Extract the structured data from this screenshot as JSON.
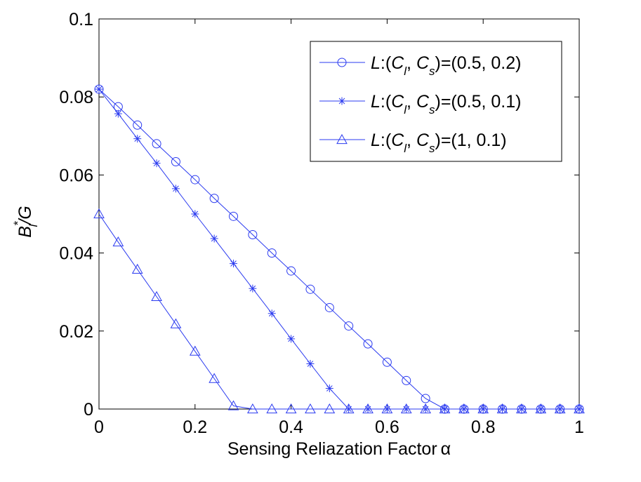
{
  "chart_data": {
    "type": "line",
    "title": "",
    "xlabel": "Sensing Reliazation Factor",
    "xlabel_symbol": "α",
    "ylabel": {
      "base": "B",
      "sup": "*",
      "sub": "l",
      "rest": "/G"
    },
    "xlim": [
      0,
      1
    ],
    "ylim": [
      0,
      0.1
    ],
    "xticks": [
      0,
      0.2,
      0.4,
      0.6,
      0.8,
      1
    ],
    "xtick_labels": [
      "0",
      "0.2",
      "0.4",
      "0.6",
      "0.8",
      "1"
    ],
    "yticks": [
      0,
      0.02,
      0.04,
      0.06,
      0.08,
      0.1
    ],
    "ytick_labels": [
      "0",
      "0.02",
      "0.04",
      "0.06",
      "0.08",
      "0.1"
    ],
    "grid": false,
    "legend_position": "top-right",
    "color": "#2b3bf0",
    "x": [
      0,
      0.04,
      0.08,
      0.12,
      0.16,
      0.2,
      0.24,
      0.28,
      0.32,
      0.36,
      0.4,
      0.44,
      0.48,
      0.52,
      0.56,
      0.6,
      0.64,
      0.68,
      0.72,
      0.76,
      0.8,
      0.84,
      0.88,
      0.92,
      0.96,
      1
    ],
    "series": [
      {
        "name": "L:(C_l, C_s)=(0.5, 0.2)",
        "legend": {
          "L": "L",
          "colon": ":(",
          "C": "C",
          "sub1": "l",
          "sep": ", ",
          "sub2": "s",
          "tail": ")=(0.5, 0.2)"
        },
        "marker": "circle",
        "values": [
          0.082,
          0.0775,
          0.0728,
          0.068,
          0.0634,
          0.0588,
          0.054,
          0.0494,
          0.0447,
          0.04,
          0.0354,
          0.0307,
          0.026,
          0.0213,
          0.0167,
          0.012,
          0.0073,
          0.0027,
          0,
          0,
          0,
          0,
          0,
          0,
          0,
          0
        ]
      },
      {
        "name": "L:(C_l, C_s)=(0.5, 0.1)",
        "legend": {
          "L": "L",
          "colon": ":(",
          "C": "C",
          "sub1": "l",
          "sep": ", ",
          "sub2": "s",
          "tail": ")=(0.5, 0.1)"
        },
        "marker": "star",
        "values": [
          0.082,
          0.0757,
          0.0693,
          0.063,
          0.0565,
          0.05,
          0.0437,
          0.0373,
          0.0309,
          0.0245,
          0.018,
          0.0116,
          0.0053,
          0,
          0,
          0,
          0,
          0,
          0,
          0,
          0,
          0,
          0,
          0,
          0,
          0
        ]
      },
      {
        "name": "L:(C_l, C_s)=(1, 0.1)",
        "legend": {
          "L": "L",
          "colon": ":(",
          "C": "C",
          "sub1": "l",
          "sep": ", ",
          "sub2": "s",
          "tail": ")=(1, 0.1)"
        },
        "marker": "triangle",
        "values": [
          0.05,
          0.0428,
          0.0358,
          0.0288,
          0.0218,
          0.0148,
          0.0078,
          0.0008,
          0,
          0,
          0,
          0,
          0,
          0,
          0,
          0,
          0,
          0,
          0,
          0,
          0,
          0,
          0,
          0,
          0,
          0
        ]
      }
    ]
  }
}
